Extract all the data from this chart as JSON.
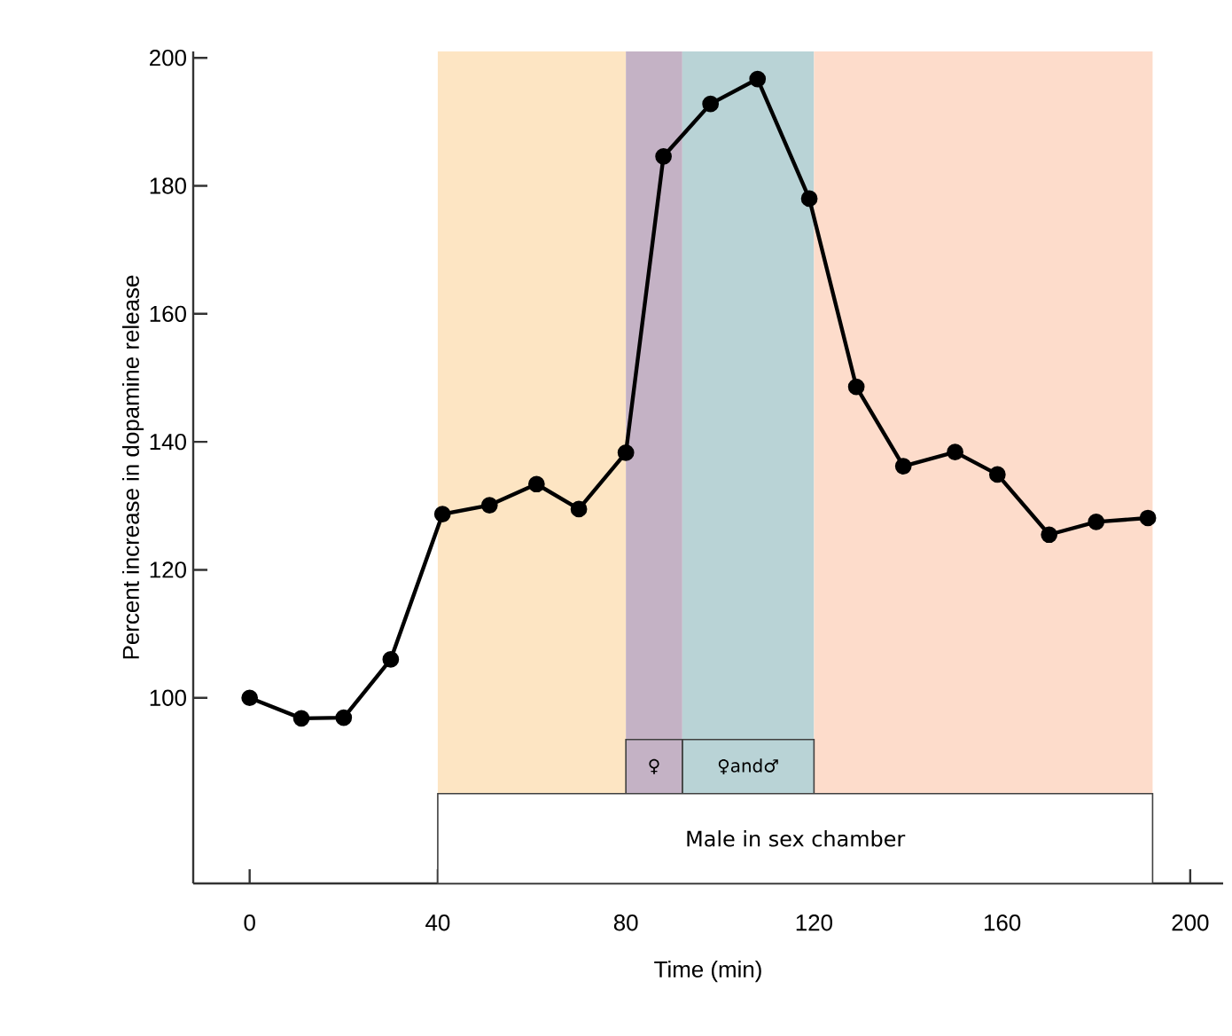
{
  "chart_data": {
    "type": "line",
    "xlabel": "Time (min)",
    "ylabel": "Percent increase in dopamine release",
    "x": [
      0,
      11,
      20,
      30,
      41,
      51,
      61,
      70,
      80,
      88,
      98,
      108,
      119,
      129,
      139,
      150,
      159,
      170,
      180,
      191
    ],
    "series": [
      {
        "color": "#000000",
        "values": [
          100,
          96.8,
          96.9,
          106,
          128.7,
          130.1,
          133.4,
          129.5,
          138.3,
          184.6,
          192.8,
          196.7,
          178,
          148.6,
          136.2,
          138.4,
          134.9,
          125.5,
          127.5,
          128.1
        ]
      }
    ],
    "xlim": [
      -12,
      207
    ],
    "ylim": [
      71,
      201
    ],
    "xticks": [
      0,
      40,
      80,
      120,
      160,
      200
    ],
    "yticks": [
      100,
      120,
      140,
      160,
      180,
      200
    ],
    "marker": "circle",
    "line_style": "solid",
    "grid": false,
    "bands": [
      {
        "axis": "x",
        "from": 40,
        "to": 80,
        "color": "#fde5c3"
      },
      {
        "axis": "x",
        "from": 80,
        "to": 92,
        "color": "#c4b2c5",
        "label": "♀"
      },
      {
        "axis": "x",
        "from": 92,
        "to": 120,
        "color": "#b9d3d6",
        "label": "♀and♂"
      },
      {
        "axis": "x",
        "from": 120,
        "to": 192,
        "color": "#fddccb"
      },
      {
        "axis": "x",
        "from": 40,
        "to": 192,
        "label": "Male in sex chamber"
      }
    ]
  }
}
